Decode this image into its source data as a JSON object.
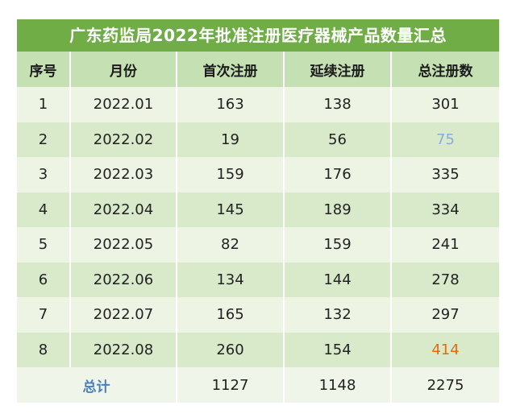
{
  "title": "广东药监局2022年批准注册医疗器械产品数量汇总",
  "headers": [
    "序号",
    "月份",
    "首次注册",
    "延续注册",
    "总注册数"
  ],
  "rows": [
    {
      "no": "1",
      "month": "2022.01",
      "first": "163",
      "renewal": "138",
      "total": "301"
    },
    {
      "no": "2",
      "month": "2022.02",
      "first": "19",
      "renewal": "56",
      "total": "75"
    },
    {
      "no": "3",
      "month": "2022.03",
      "first": "159",
      "renewal": "176",
      "total": "335"
    },
    {
      "no": "4",
      "month": "2022.04",
      "first": "145",
      "renewal": "189",
      "total": "334"
    },
    {
      "no": "5",
      "month": "2022.05",
      "first": "82",
      "renewal": "159",
      "total": "241"
    },
    {
      "no": "6",
      "month": "2022.06",
      "first": "134",
      "renewal": "144",
      "total": "278"
    },
    {
      "no": "7",
      "month": "2022.07",
      "first": "165",
      "renewal": "132",
      "total": "297"
    },
    {
      "no": "8",
      "month": "2022.08",
      "first": "260",
      "renewal": "154",
      "total": "414"
    }
  ],
  "summary": {
    "label": "总计",
    "first": "1127",
    "renewal": "1148",
    "total": "2275"
  },
  "colors": {
    "title_bg": "#70ad47",
    "header_bg": "#c5e0b3",
    "row_light": "#edf4e4",
    "row_dark": "#d9eacb",
    "min_highlight": "#86aedc",
    "max_highlight": "#e36c09",
    "total_label": "#4a7fc1"
  }
}
